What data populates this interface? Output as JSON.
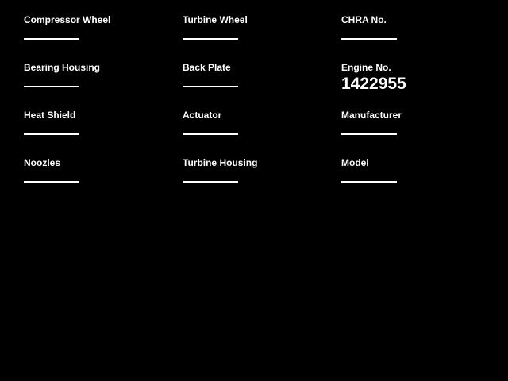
{
  "page": {
    "background_color": "#000000",
    "text_color": "#ffffff"
  },
  "form": {
    "columns": [
      {
        "fields": [
          {
            "label": "Compressor Wheel",
            "value": ""
          },
          {
            "label": "Bearing Housing",
            "value": ""
          },
          {
            "label": "Heat Shield",
            "value": ""
          },
          {
            "label": "Noozles",
            "value": ""
          }
        ]
      },
      {
        "fields": [
          {
            "label": "Turbine Wheel",
            "value": ""
          },
          {
            "label": "Back Plate",
            "value": ""
          },
          {
            "label": "Actuator",
            "value": ""
          },
          {
            "label": "Turbine Housing",
            "value": ""
          }
        ]
      },
      {
        "fields": [
          {
            "label": "CHRA No.",
            "value": ""
          },
          {
            "label": "Engine No.",
            "value": "1422955"
          },
          {
            "label": "Manufacturer",
            "value": ""
          },
          {
            "label": "Model",
            "value": ""
          }
        ]
      }
    ]
  }
}
